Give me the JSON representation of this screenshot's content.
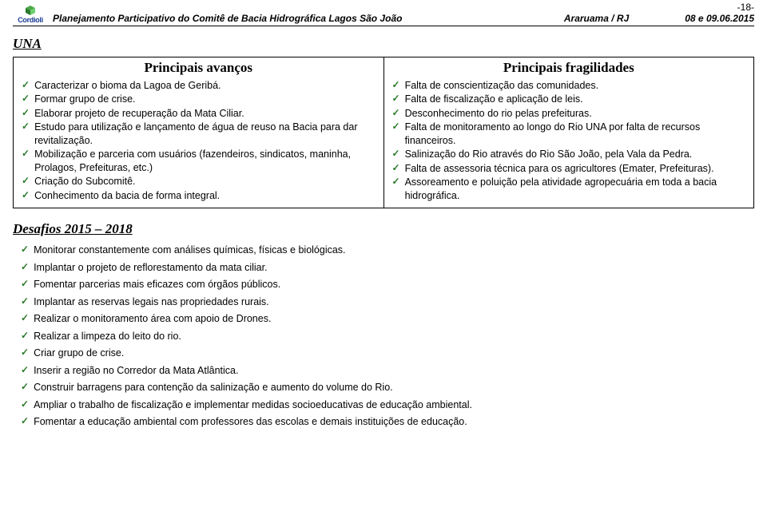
{
  "header": {
    "logo_label": "Cordioli",
    "title": "Planejamento Participativo do Comitê de Bacia Hidrográfica Lagos São João",
    "location": "Araruama / RJ",
    "date": "08 e 09.06.2015",
    "page_number": "-18-"
  },
  "section_una": "UNA",
  "table": {
    "left_header": "Principais avanços",
    "right_header": "Principais fragilidades",
    "left_items": [
      "Caracterizar o bioma da Lagoa de Geribá.",
      "Formar grupo de crise.",
      "Elaborar projeto de recuperação da Mata Ciliar.",
      "Estudo para utilização e lançamento de água de reuso na Bacia para dar revitalização.",
      "Mobilização e parceria com usuários (fazendeiros, sindicatos, maninha, Prolagos, Prefeituras, etc.)",
      "Criação do Subcomitê.",
      "Conhecimento da bacia de forma integral."
    ],
    "right_items": [
      "Falta de conscientização das comunidades.",
      "Falta de fiscalização e aplicação de leis.",
      "Desconhecimento do rio pelas prefeituras.",
      "Falta de monitoramento ao longo do Rio UNA por falta de recursos financeiros.",
      "Salinização do Rio através do Rio São João, pela Vala da Pedra.",
      "Falta de assessoria técnica para os agricultores (Emater, Prefeituras).",
      "Assoreamento e poluição pela atividade agropecuária em toda a bacia hidrográfica."
    ]
  },
  "desafios": {
    "title": "Desafios 2015 – 2018",
    "items": [
      "Monitorar constantemente com análises químicas, físicas e biológicas.",
      "Implantar o projeto de reflorestamento da mata ciliar.",
      "Fomentar parcerias mais eficazes com órgãos públicos.",
      "Implantar as reservas legais nas propriedades rurais.",
      "Realizar o monitoramento área com apoio de Drones.",
      "Realizar a limpeza do leito do rio.",
      "Criar grupo de crise.",
      "Inserir a região no Corredor da Mata Atlântica.",
      "Construir barragens para contenção da salinização e aumento do volume do Rio.",
      "Ampliar o trabalho de fiscalização e implementar medidas socioeducativas de educação ambiental.",
      "Fomentar a educação ambiental com professores das escolas e demais instituições de educação."
    ]
  },
  "colors": {
    "tick": "#2a7a2a",
    "logo_blue": "#1a3c92"
  }
}
